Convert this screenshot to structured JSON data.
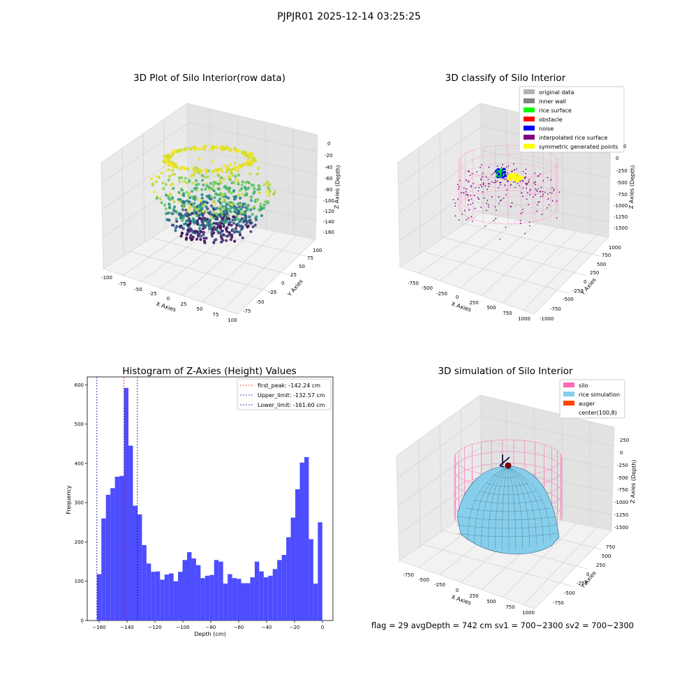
{
  "figure": {
    "suptitle": "PJPJR01 2025-12-14 03:25:25",
    "footer": "flag = 29  avgDepth = 742 cm  sv1 = 700~2300  sv2 = 700~2300"
  },
  "chart_data": [
    {
      "type": "scatter",
      "title": "3D Plot of Silo Interior(row data)",
      "xlabel": "X Axies",
      "ylabel": "Y Axies",
      "zlabel": "Z Axies (Depth)",
      "xlim": [
        -100,
        100
      ],
      "ylim": [
        -75,
        100
      ],
      "zlim": [
        -165,
        5
      ],
      "xticks": [
        "-100",
        "-75",
        "-50",
        "-25",
        "0",
        "25",
        "50",
        "75",
        "100"
      ],
      "yticks": [
        "-75",
        "-50",
        "-25",
        "0",
        "25",
        "50",
        "75",
        "100"
      ],
      "zticks": [
        "0",
        "-20",
        "-40",
        "-60",
        "-80",
        "-100",
        "-120",
        "-140",
        "-160"
      ],
      "colormap": "viridis",
      "description_values": {
        "z_min": -162,
        "z_max": 0
      }
    },
    {
      "type": "scatter",
      "title": "3D classify of Silo Interior",
      "xlabel": "X Axies",
      "ylabel": "Y Axies",
      "zlabel": "Z Axies (Depth)",
      "xticks": [
        "-750",
        "-500",
        "-250",
        "0",
        "250",
        "500",
        "750",
        "1000"
      ],
      "yticks": [
        "-1000",
        "-750",
        "-500",
        "-250",
        "0",
        "250",
        "500",
        "750",
        "1000"
      ],
      "zticks": [
        "0",
        "-250",
        "-500",
        "-750",
        "-1000",
        "-1250",
        "-1500"
      ],
      "legend_position": "top-right",
      "legend": [
        {
          "label": "original data",
          "color": "#b3b3b3"
        },
        {
          "label": "inner wall",
          "color": "#808080"
        },
        {
          "label": "rice surface",
          "color": "#00ff00"
        },
        {
          "label": "obstacle",
          "color": "#ff0000"
        },
        {
          "label": "noise",
          "color": "#0000ff"
        },
        {
          "label": "interpolated rice surface",
          "color": "#800080"
        },
        {
          "label": "symmetric generated points",
          "color": "#ffff00"
        }
      ]
    },
    {
      "type": "bar",
      "title": "Histogram of Z-Axies (Height) Values",
      "xlabel": "Depth (cm)",
      "ylabel": "Frequency",
      "xlim": [
        -168.5,
        7.5
      ],
      "ylim": [
        0,
        620
      ],
      "xticks": [
        -160,
        -140,
        -120,
        -100,
        -80,
        -60,
        -40,
        -20,
        0
      ],
      "yticks": [
        0,
        100,
        200,
        300,
        400,
        500,
        600
      ],
      "bar_color": "#4d4dff",
      "bin_start": -161.6,
      "bin_width": 3.23,
      "values": [
        118,
        260,
        320,
        337,
        366,
        368,
        592,
        445,
        292,
        270,
        192,
        145,
        124,
        125,
        104,
        117,
        120,
        100,
        124,
        154,
        174,
        158,
        141,
        108,
        114,
        116,
        154,
        150,
        94,
        118,
        108,
        106,
        95,
        95,
        110,
        150,
        125,
        110,
        114,
        131,
        154,
        167,
        212,
        262,
        334,
        402,
        416,
        207,
        94,
        250
      ],
      "vlines": [
        {
          "label": "first_peak: -142.24 cm",
          "x": -142.24,
          "color": "#ff0000"
        },
        {
          "label": "Upper_limit: -132.57 cm",
          "x": -132.57,
          "color": "#0000aa"
        },
        {
          "label": "Lower_limit: -161.60 cm",
          "x": -161.6,
          "color": "#0000aa"
        }
      ],
      "legend_position": "top-right"
    },
    {
      "type": "area",
      "title": "3D simulation of Silo Interior",
      "xlabel": "X Axies",
      "ylabel": "Y Axies",
      "zlabel": "Z Axies (Depth)",
      "xticks": [
        "-750",
        "-500",
        "-250",
        "0",
        "250",
        "500",
        "750",
        "1000"
      ],
      "yticks": [
        "-750",
        "-500",
        "-250",
        "0",
        "250",
        "500",
        "750"
      ],
      "zticks": [
        "250",
        "0",
        "-250",
        "-500",
        "-750",
        "-1000",
        "-1250",
        "-1500"
      ],
      "legend_position": "top-right",
      "legend": [
        {
          "label": "silo",
          "color": "#ff69b4"
        },
        {
          "label": "rice simulation",
          "color": "#87ceeb"
        },
        {
          "label": "auger",
          "color": "#ff4500"
        },
        {
          "label": "center(100,8)",
          "color": ""
        }
      ]
    }
  ]
}
